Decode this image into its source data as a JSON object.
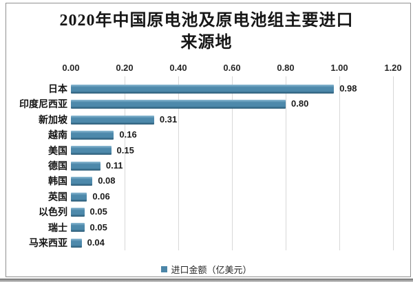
{
  "chart_data": {
    "type": "bar",
    "orientation": "horizontal",
    "title": "2020年中国原电池及原电池组主要进口来源地",
    "title_lines": [
      "2020年中国原电池及原电池组主要进口",
      "来源地"
    ],
    "categories": [
      "日本",
      "印度尼西亚",
      "新加坡",
      "越南",
      "美国",
      "德国",
      "韩国",
      "英国",
      "以色列",
      "瑞士",
      "马来西亚"
    ],
    "values": [
      0.98,
      0.8,
      0.31,
      0.16,
      0.15,
      0.11,
      0.08,
      0.06,
      0.05,
      0.05,
      0.04
    ],
    "value_labels": [
      "0.98",
      "0.80",
      "0.31",
      "0.16",
      "0.15",
      "0.11",
      "0.08",
      "0.06",
      "0.05",
      "0.05",
      "0.04"
    ],
    "x_ticks": [
      "0.00",
      "0.20",
      "0.40",
      "0.60",
      "0.80",
      "1.00",
      "1.20"
    ],
    "xlim": [
      0,
      1.2
    ],
    "tick_interval": 0.2,
    "grid": true,
    "legend_label": "进口金额（亿美元）",
    "legend_position": "bottom",
    "xlabel": "",
    "ylabel": "",
    "colors": {
      "bar_top": "#8fbcd4",
      "bar_mid": "#4d89ab",
      "bar_bottom": "#2a5872",
      "legend_marker": "#4c86a8",
      "gridline": "#d7d7d7",
      "frame_border": "#8f8f8f",
      "title_text": "#161616"
    }
  }
}
